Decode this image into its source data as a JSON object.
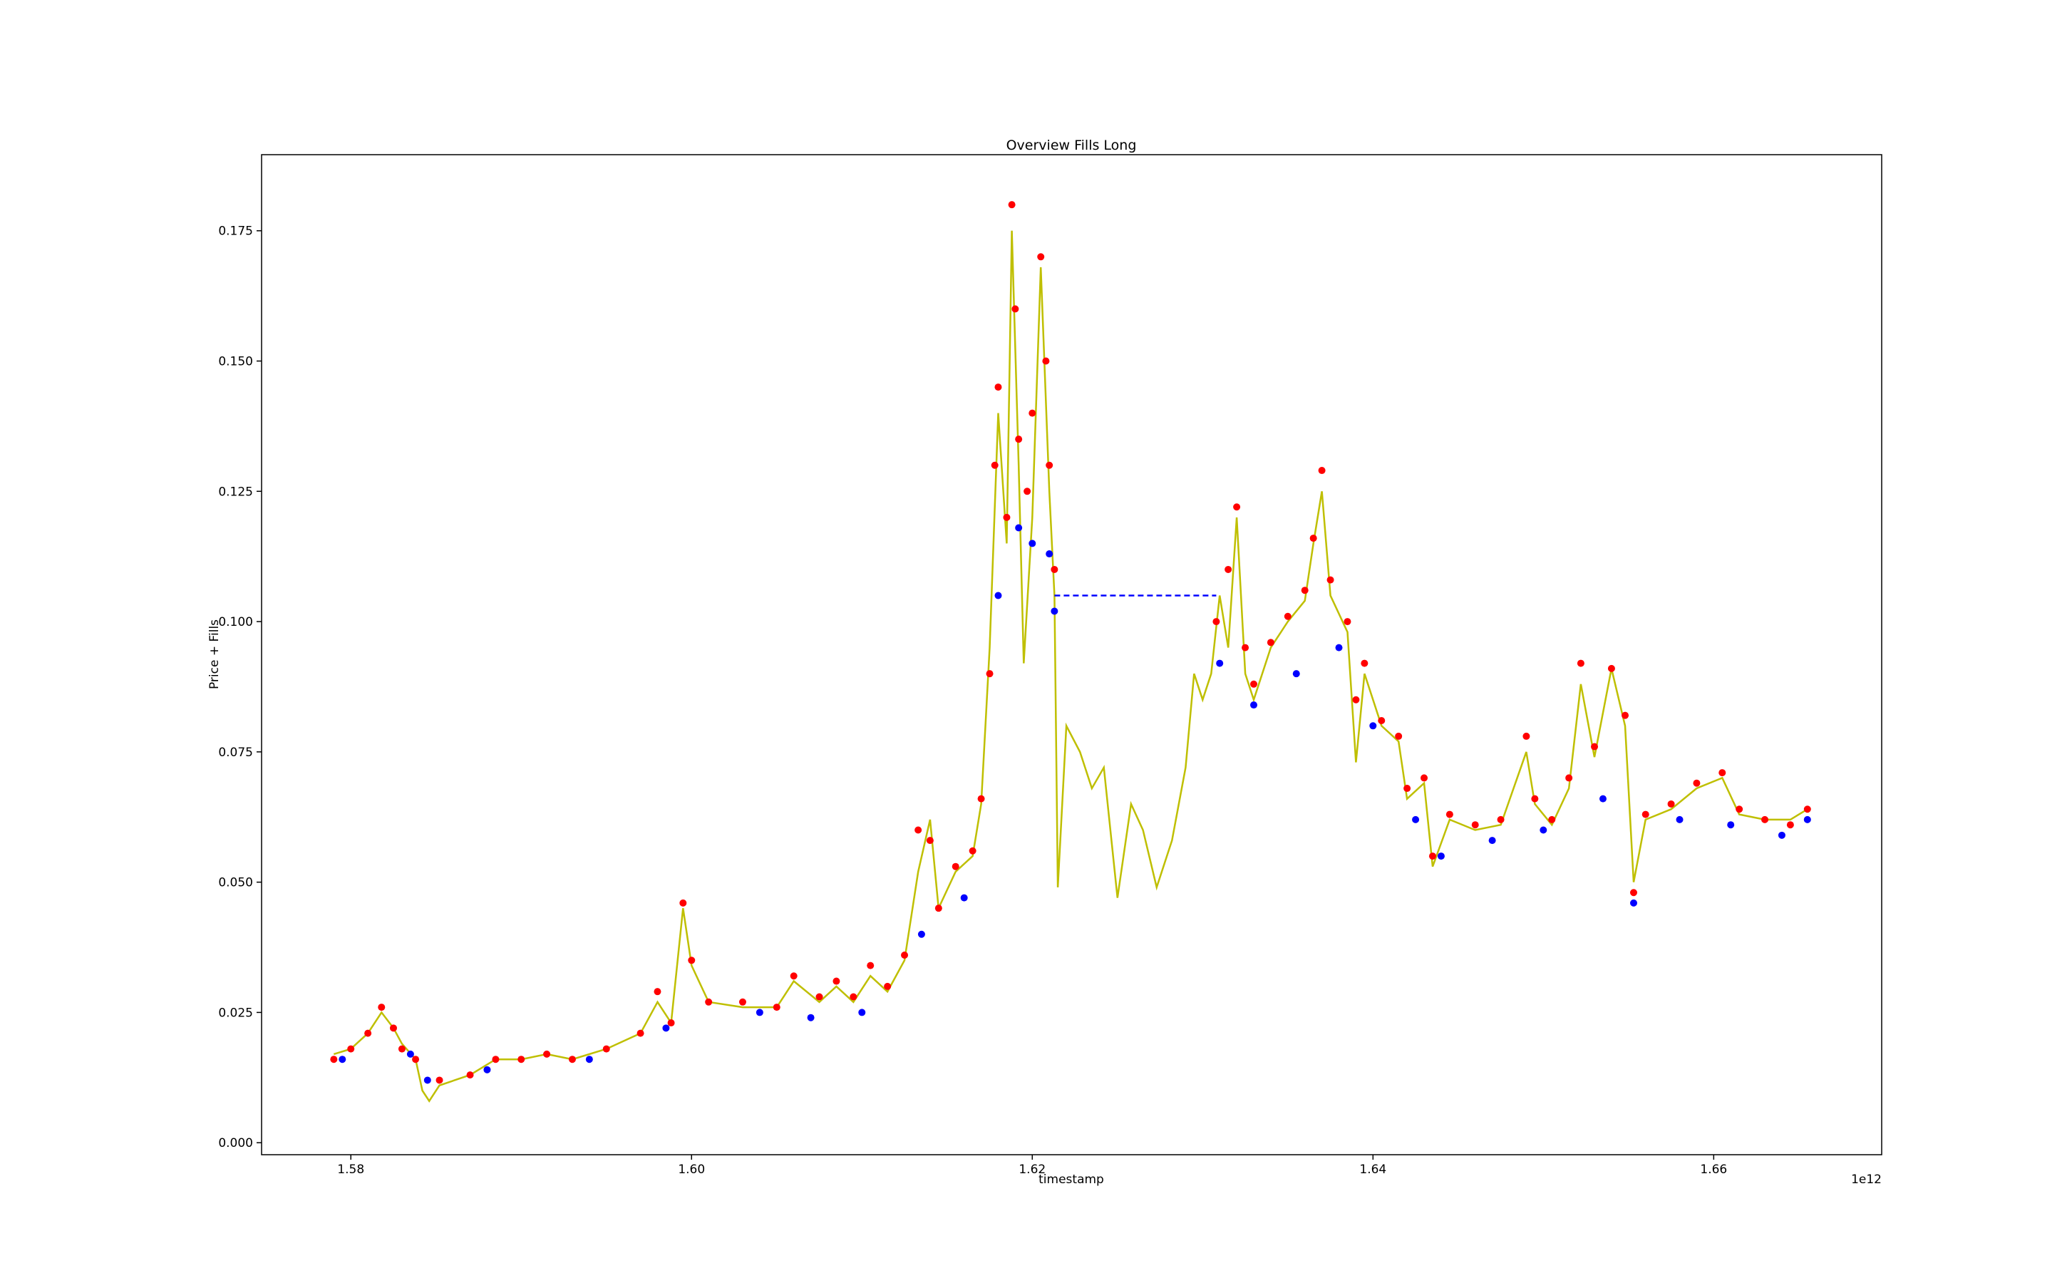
{
  "chart_data": {
    "type": "line",
    "title": "Overview Fills Long",
    "xlabel": "timestamp",
    "ylabel": "Price + Fills",
    "x_offset_label": "1e12",
    "xlim": [
      1574760000000.0,
      1669860000000.0
    ],
    "ylim": [
      -0.0023,
      0.1896
    ],
    "xticks": [
      {
        "value": 1580000000000.0,
        "label": "1.58"
      },
      {
        "value": 1600000000000.0,
        "label": "1.60"
      },
      {
        "value": 1620000000000.0,
        "label": "1.62"
      },
      {
        "value": 1640000000000.0,
        "label": "1.64"
      },
      {
        "value": 1660000000000.0,
        "label": "1.66"
      }
    ],
    "yticks": [
      {
        "value": 0,
        "label": "0.000"
      },
      {
        "value": 0.025,
        "label": "0.025"
      },
      {
        "value": 0.05,
        "label": "0.050"
      },
      {
        "value": 0.075,
        "label": "0.075"
      },
      {
        "value": 0.1,
        "label": "0.100"
      },
      {
        "value": 0.125,
        "label": "0.125"
      },
      {
        "value": 0.15,
        "label": "0.150"
      },
      {
        "value": 0.175,
        "label": "0.175"
      }
    ],
    "series": [
      {
        "style": "line",
        "color": "#bfbf00",
        "x": [
          1579000000000.0,
          1580000000000.0,
          1581000000000.0,
          1581800000000.0,
          1582500000000.0,
          1583000000000.0,
          1583800000000.0,
          1584200000000.0,
          1584600000000.0,
          1585200000000.0,
          1587000000000.0,
          1588500000000.0,
          1590000000000.0,
          1591500000000.0,
          1593000000000.0,
          1595000000000.0,
          1597000000000.0,
          1598000000000.0,
          1598800000000.0,
          1599500000000.0,
          1600000000000.0,
          1601000000000.0,
          1603000000000.0,
          1605000000000.0,
          1606000000000.0,
          1607500000000.0,
          1608500000000.0,
          1609500000000.0,
          1610500000000.0,
          1611500000000.0,
          1612500000000.0,
          1613300000000.0,
          1614000000000.0,
          1614500000000.0,
          1615500000000.0,
          1616500000000.0,
          1617000000000.0,
          1617500000000.0,
          1618000000000.0,
          1618500000000.0,
          1618800000000.0,
          1619200000000.0,
          1619500000000.0,
          1620000000000.0,
          1620500000000.0,
          1621000000000.0,
          1621300000000.0,
          1621500000000.0,
          1622000000000.0,
          1622800000000.0,
          1623500000000.0,
          1624200000000.0,
          1625000000000.0,
          1625800000000.0,
          1626500000000.0,
          1627300000000.0,
          1628200000000.0,
          1629000000000.0,
          1629500000000.0,
          1630000000000.0,
          1630500000000.0,
          1631000000000.0,
          1631500000000.0,
          1632000000000.0,
          1632500000000.0,
          1633000000000.0,
          1634000000000.0,
          1635000000000.0,
          1636000000000.0,
          1636500000000.0,
          1637000000000.0,
          1637500000000.0,
          1638500000000.0,
          1639000000000.0,
          1639500000000.0,
          1640500000000.0,
          1641500000000.0,
          1642000000000.0,
          1643000000000.0,
          1643500000000.0,
          1644500000000.0,
          1646000000000.0,
          1647500000000.0,
          1649000000000.0,
          1649500000000.0,
          1650500000000.0,
          1651500000000.0,
          1652200000000.0,
          1653000000000.0,
          1654000000000.0,
          1654800000000.0,
          1655300000000.0,
          1656000000000.0,
          1657500000000.0,
          1659000000000.0,
          1660500000000.0,
          1661500000000.0,
          1663000000000.0,
          1664500000000.0,
          1665500000000.0
        ],
        "values": [
          0.017,
          0.018,
          0.021,
          0.025,
          0.022,
          0.019,
          0.016,
          0.01,
          0.008,
          0.011,
          0.013,
          0.016,
          0.016,
          0.017,
          0.016,
          0.018,
          0.021,
          0.027,
          0.023,
          0.045,
          0.034,
          0.027,
          0.026,
          0.026,
          0.031,
          0.027,
          0.03,
          0.027,
          0.032,
          0.029,
          0.035,
          0.052,
          0.062,
          0.045,
          0.052,
          0.055,
          0.065,
          0.095,
          0.14,
          0.115,
          0.175,
          0.13,
          0.092,
          0.12,
          0.168,
          0.125,
          0.105,
          0.049,
          0.08,
          0.075,
          0.068,
          0.072,
          0.047,
          0.065,
          0.06,
          0.049,
          0.058,
          0.072,
          0.09,
          0.085,
          0.09,
          0.105,
          0.095,
          0.12,
          0.09,
          0.085,
          0.095,
          0.1,
          0.104,
          0.115,
          0.125,
          0.105,
          0.098,
          0.073,
          0.09,
          0.08,
          0.077,
          0.066,
          0.069,
          0.053,
          0.062,
          0.06,
          0.061,
          0.075,
          0.065,
          0.061,
          0.068,
          0.088,
          0.074,
          0.091,
          0.08,
          0.05,
          0.062,
          0.064,
          0.068,
          0.07,
          0.063,
          0.062,
          0.062,
          0.064
        ]
      },
      {
        "style": "dashed",
        "color": "#0000ff",
        "x": [
          1621300000000.0,
          1630800000000.0
        ],
        "values": [
          0.105,
          0.105
        ]
      },
      {
        "style": "dots",
        "color": "#ff0000",
        "x": [
          1579000000000.0,
          1580000000000.0,
          1581000000000.0,
          1581800000000.0,
          1582500000000.0,
          1583000000000.0,
          1583800000000.0,
          1585200000000.0,
          1587000000000.0,
          1588500000000.0,
          1590000000000.0,
          1591500000000.0,
          1593000000000.0,
          1595000000000.0,
          1597000000000.0,
          1598000000000.0,
          1598800000000.0,
          1599500000000.0,
          1600000000000.0,
          1601000000000.0,
          1603000000000.0,
          1605000000000.0,
          1606000000000.0,
          1607500000000.0,
          1608500000000.0,
          1609500000000.0,
          1610500000000.0,
          1611500000000.0,
          1612500000000.0,
          1613300000000.0,
          1614000000000.0,
          1614500000000.0,
          1615500000000.0,
          1616500000000.0,
          1617000000000.0,
          1617500000000.0,
          1617800000000.0,
          1618000000000.0,
          1618500000000.0,
          1618800000000.0,
          1619000000000.0,
          1619200000000.0,
          1619700000000.0,
          1620000000000.0,
          1620500000000.0,
          1620800000000.0,
          1621000000000.0,
          1621300000000.0,
          1630800000000.0,
          1631500000000.0,
          1632000000000.0,
          1632500000000.0,
          1633000000000.0,
          1634000000000.0,
          1635000000000.0,
          1636000000000.0,
          1636500000000.0,
          1637000000000.0,
          1637500000000.0,
          1638500000000.0,
          1639000000000.0,
          1639500000000.0,
          1640500000000.0,
          1641500000000.0,
          1642000000000.0,
          1643000000000.0,
          1643500000000.0,
          1644500000000.0,
          1646000000000.0,
          1647500000000.0,
          1649000000000.0,
          1649500000000.0,
          1650500000000.0,
          1651500000000.0,
          1652200000000.0,
          1653000000000.0,
          1654000000000.0,
          1654800000000.0,
          1655300000000.0,
          1656000000000.0,
          1657500000000.0,
          1659000000000.0,
          1660500000000.0,
          1661500000000.0,
          1663000000000.0,
          1664500000000.0,
          1665500000000.0
        ],
        "values": [
          0.016,
          0.018,
          0.021,
          0.026,
          0.022,
          0.018,
          0.016,
          0.012,
          0.013,
          0.016,
          0.016,
          0.017,
          0.016,
          0.018,
          0.021,
          0.029,
          0.023,
          0.046,
          0.035,
          0.027,
          0.027,
          0.026,
          0.032,
          0.028,
          0.031,
          0.028,
          0.034,
          0.03,
          0.036,
          0.06,
          0.058,
          0.045,
          0.053,
          0.056,
          0.066,
          0.09,
          0.13,
          0.145,
          0.12,
          0.18,
          0.16,
          0.135,
          0.125,
          0.14,
          0.17,
          0.15,
          0.13,
          0.11,
          0.1,
          0.11,
          0.122,
          0.095,
          0.088,
          0.096,
          0.101,
          0.106,
          0.116,
          0.129,
          0.108,
          0.1,
          0.085,
          0.092,
          0.081,
          0.078,
          0.068,
          0.07,
          0.055,
          0.063,
          0.061,
          0.062,
          0.078,
          0.066,
          0.062,
          0.07,
          0.092,
          0.076,
          0.091,
          0.082,
          0.048,
          0.063,
          0.065,
          0.069,
          0.071,
          0.064,
          0.062,
          0.061,
          0.064
        ]
      },
      {
        "style": "dots",
        "color": "#0000ff",
        "x": [
          1579500000000.0,
          1583500000000.0,
          1584500000000.0,
          1588000000000.0,
          1594000000000.0,
          1598500000000.0,
          1604000000000.0,
          1607000000000.0,
          1610000000000.0,
          1613500000000.0,
          1616000000000.0,
          1618000000000.0,
          1619200000000.0,
          1620000000000.0,
          1621000000000.0,
          1621300000000.0,
          1631000000000.0,
          1633000000000.0,
          1635500000000.0,
          1638000000000.0,
          1640000000000.0,
          1642500000000.0,
          1644000000000.0,
          1647000000000.0,
          1650000000000.0,
          1653500000000.0,
          1655300000000.0,
          1658000000000.0,
          1661000000000.0,
          1664000000000.0,
          1665500000000.0
        ],
        "values": [
          0.016,
          0.017,
          0.012,
          0.014,
          0.016,
          0.022,
          0.025,
          0.024,
          0.025,
          0.04,
          0.047,
          0.105,
          0.118,
          0.115,
          0.113,
          0.102,
          0.092,
          0.084,
          0.09,
          0.095,
          0.08,
          0.062,
          0.055,
          0.058,
          0.06,
          0.066,
          0.046,
          0.062,
          0.061,
          0.059,
          0.062
        ]
      }
    ]
  }
}
